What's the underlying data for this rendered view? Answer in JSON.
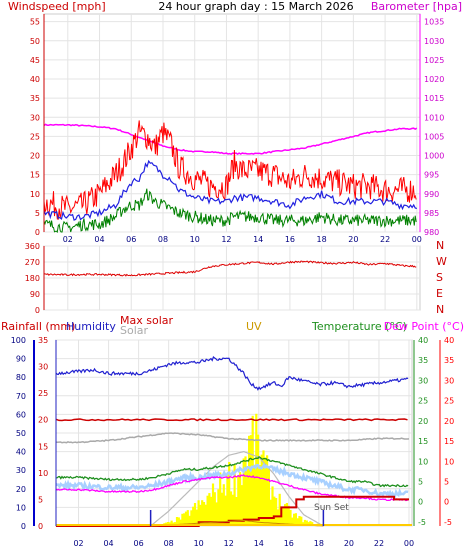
{
  "chart_data": [
    {
      "type": "line",
      "title": "24 hour graph day : 15 March 2026",
      "left_label": "Windspeed [mph]",
      "right_label": "Barometer [hpa]",
      "x_ticks": [
        "02",
        "04",
        "06",
        "08",
        "10",
        "12",
        "14",
        "16",
        "18",
        "20",
        "22",
        "00"
      ],
      "y_left_ticks": [
        "0",
        "5",
        "10",
        "15",
        "20",
        "25",
        "30",
        "35",
        "40",
        "45",
        "50",
        "55"
      ],
      "y_left_range": [
        0,
        57
      ],
      "y_right_ticks": [
        "980",
        "985",
        "990",
        "995",
        "1000",
        "1005",
        "1010",
        "1015",
        "1020",
        "1025",
        "1030",
        "1035"
      ],
      "y_right_range": [
        980,
        1037
      ],
      "x_range": [
        0.5,
        24.2
      ],
      "series": [
        {
          "id": "gust",
          "color": "#ff0000",
          "x": [
            0.5,
            2,
            3,
            4,
            5,
            5.5,
            6,
            6.5,
            7,
            7.5,
            8,
            8.5,
            9,
            10,
            11,
            12,
            12.5,
            13,
            14,
            15,
            16,
            17,
            18,
            19,
            20,
            21,
            22,
            23,
            24
          ],
          "values": [
            8,
            6,
            7,
            10,
            15,
            18,
            22,
            26,
            25,
            22,
            26,
            23,
            17,
            14,
            12,
            12,
            18,
            16,
            16,
            15,
            13,
            15,
            14,
            13,
            12,
            12,
            11,
            11,
            11
          ]
        },
        {
          "id": "wind",
          "color": "#2020e0",
          "x": [
            0.5,
            2,
            3,
            4,
            5,
            5.5,
            6,
            6.5,
            7,
            7.5,
            8,
            8.5,
            9,
            10,
            11,
            12,
            12.5,
            13,
            14,
            15,
            16,
            17,
            18,
            19,
            20,
            21,
            22,
            23,
            24
          ],
          "values": [
            5,
            4,
            4,
            5,
            7,
            10,
            13,
            14,
            18,
            17,
            15,
            14,
            11,
            9,
            8,
            8,
            9,
            9,
            9,
            8,
            7,
            9,
            10,
            8,
            8,
            8,
            8,
            7,
            7
          ]
        },
        {
          "id": "avg",
          "color": "#008000",
          "x": [
            0.5,
            2,
            3,
            4,
            5,
            5.5,
            6,
            6.5,
            7,
            7.5,
            8,
            8.5,
            9,
            10,
            11,
            12,
            12.5,
            13,
            14,
            15,
            16,
            17,
            18,
            19,
            20,
            21,
            22,
            23,
            24
          ],
          "values": [
            2,
            1,
            2,
            2,
            4,
            6,
            7,
            7,
            10,
            8,
            7,
            6,
            5,
            4,
            3,
            3,
            4,
            4,
            4,
            3,
            3,
            3,
            4,
            3,
            3,
            3,
            3,
            3,
            3
          ]
        },
        {
          "id": "baro",
          "color": "#ff00ff",
          "axis": "right",
          "x": [
            0.5,
            2,
            3,
            4,
            5,
            6,
            7,
            8,
            9,
            10,
            11,
            12,
            13,
            14,
            15,
            16,
            17,
            18,
            19,
            20,
            21,
            22,
            23,
            24
          ],
          "values": [
            1008,
            1008,
            1007.8,
            1007.5,
            1007,
            1005.5,
            1004,
            1002.5,
            1001.5,
            1001,
            1001,
            1000.5,
            1000.5,
            1000.5,
            1001,
            1001.5,
            1002,
            1003,
            1004,
            1005,
            1006,
            1006.5,
            1007,
            1007
          ]
        }
      ]
    },
    {
      "type": "line",
      "title": "",
      "y_ticks": [
        "360",
        "270",
        "180",
        "90",
        "0"
      ],
      "y_range": [
        0,
        360
      ],
      "compass_labels": [
        "N",
        "W",
        "S",
        "E",
        "N"
      ],
      "x_ticks": [
        "02",
        "04",
        "06",
        "08",
        "10",
        "12",
        "14",
        "16",
        "18",
        "20",
        "22",
        "00"
      ],
      "x_range": [
        0.5,
        24.2
      ],
      "series": [
        {
          "id": "direction",
          "color": "#dd0000",
          "x": [
            0.5,
            2,
            3,
            4,
            5,
            6,
            7,
            8,
            9,
            10,
            10.5,
            11,
            12,
            13,
            14,
            15,
            16,
            17,
            18,
            19,
            20,
            21,
            22,
            23,
            24
          ],
          "values": [
            200,
            198,
            200,
            200,
            198,
            195,
            200,
            205,
            210,
            215,
            230,
            245,
            255,
            262,
            268,
            258,
            270,
            272,
            265,
            262,
            268,
            255,
            262,
            250,
            245
          ]
        }
      ]
    },
    {
      "type": "line",
      "title": "",
      "labels": {
        "rainfall": "Rainfall (mm)",
        "humidity": "Humidity",
        "max_solar": "Max solar",
        "solar": "Solar",
        "uv": "UV",
        "temperature": "Temperature (°C)",
        "dew_point": "Dew Point (°C)",
        "sunset": "Sun Set"
      },
      "humidity_ticks": [
        "0",
        "10",
        "20",
        "30",
        "40",
        "50",
        "60",
        "70",
        "80",
        "90",
        "100"
      ],
      "humidity_range": [
        0,
        100
      ],
      "rain_ticks": [
        "0",
        "5",
        "10",
        "15",
        "20",
        "25",
        "30",
        "35"
      ],
      "rain_range": [
        0,
        35
      ],
      "temp_ticks": [
        "-5",
        "0",
        "5",
        "10",
        "15",
        "20",
        "25",
        "30",
        "35",
        "40"
      ],
      "temp_range": [
        -6,
        40
      ],
      "x_ticks": [
        "02",
        "04",
        "06",
        "08",
        "10",
        "12",
        "14",
        "16",
        "18",
        "20",
        "22",
        "00"
      ],
      "x_range": [
        0.5,
        24.2
      ],
      "sunrise_hour": 6.8,
      "sunset_hour": 18.3,
      "series": [
        {
          "id": "humidity",
          "color": "#2020d0",
          "axis": "humidity",
          "x": [
            0.5,
            2,
            3,
            4,
            5,
            6,
            7,
            8,
            9,
            10,
            11,
            12,
            13,
            13.5,
            14,
            15,
            15.5,
            16,
            17,
            18,
            19,
            20,
            21,
            22,
            23,
            24
          ],
          "values": [
            82,
            83,
            84,
            82,
            82,
            82,
            84,
            87,
            88,
            88,
            90,
            90,
            82,
            76,
            74,
            77,
            75,
            80,
            78,
            76,
            77,
            75,
            76,
            77,
            78,
            79
          ]
        },
        {
          "id": "rain_rate",
          "color": "#cc0000",
          "axis": "rain",
          "x": [
            0.5,
            24.2
          ],
          "values": [
            20,
            20
          ]
        },
        {
          "id": "max_solar",
          "color": "#aaaaaa",
          "axis": "humidity",
          "x": [
            0.5,
            2,
            4,
            6,
            8,
            10,
            12,
            14,
            16,
            18,
            20,
            22,
            24
          ],
          "values": [
            45,
            45,
            46,
            48,
            50,
            49,
            47,
            46,
            46,
            46,
            46,
            47,
            47
          ]
        },
        {
          "id": "temperature",
          "color": "#209020",
          "axis": "temp",
          "x": [
            0.5,
            2,
            4,
            6,
            7,
            8,
            9,
            10,
            11,
            12,
            13,
            14,
            15,
            16,
            17,
            18,
            19,
            20,
            21,
            22,
            23,
            24
          ],
          "values": [
            6,
            6,
            5.5,
            5.5,
            6,
            7,
            8,
            8,
            8.5,
            9,
            10,
            11,
            10,
            9,
            8,
            7,
            6,
            5,
            5,
            4,
            4,
            4
          ]
        },
        {
          "id": "dew_point",
          "color": "#ff00ff",
          "axis": "temp",
          "x": [
            0.5,
            2,
            4,
            6,
            7,
            8,
            9,
            10,
            11,
            12,
            13,
            14,
            15,
            16,
            17,
            18,
            19,
            20,
            21,
            22,
            23,
            24
          ],
          "values": [
            3,
            3,
            2.5,
            2.5,
            3,
            4,
            5,
            5.5,
            6,
            6,
            6.5,
            6,
            5,
            4,
            3,
            2,
            1.5,
            1,
            1,
            0.5,
            0.5,
            0.5
          ]
        },
        {
          "id": "solar",
          "color": "#ffff00",
          "axis": "humidity",
          "x": [
            6.8,
            8,
            9,
            9.5,
            10,
            11,
            12,
            12.5,
            13,
            13.5,
            14,
            14.5,
            15,
            16,
            17,
            18.3
          ],
          "values": [
            0,
            2,
            6,
            10,
            12,
            20,
            30,
            28,
            40,
            52,
            45,
            30,
            18,
            8,
            3,
            0
          ]
        },
        {
          "id": "solar_curve",
          "color": "#bbbbbb",
          "axis": "humidity",
          "x": [
            6.8,
            8,
            9,
            10,
            11,
            12,
            13,
            14,
            15,
            16,
            17,
            18.3
          ],
          "values": [
            0,
            8,
            16,
            24,
            32,
            38,
            40,
            37,
            28,
            16,
            6,
            0
          ]
        },
        {
          "id": "rain_total",
          "color": "#cc0000",
          "axis": "rain",
          "x": [
            0.5,
            9,
            10,
            12,
            13,
            14,
            15,
            15.5,
            16,
            16.5,
            17,
            22,
            23,
            24
          ],
          "values": [
            0,
            0,
            0.7,
            1,
            1.2,
            1.5,
            1.8,
            3.5,
            3.5,
            5,
            5.5,
            5.5,
            5,
            5
          ]
        },
        {
          "id": "uv",
          "color": "#cc8800",
          "axis": "humidity",
          "x": [
            6.8,
            9,
            11,
            13,
            14,
            16,
            18.3
          ],
          "values": [
            0,
            1,
            2,
            3,
            2,
            1,
            0
          ]
        }
      ]
    }
  ]
}
